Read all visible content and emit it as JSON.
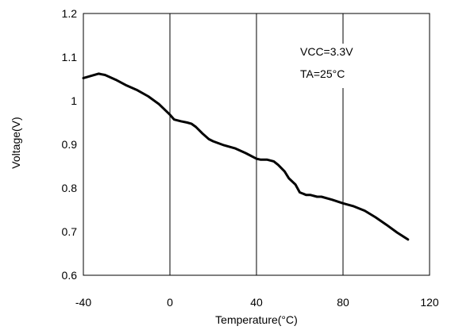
{
  "chart_data": {
    "type": "line",
    "xlabel": "Temperature(°C)",
    "ylabel": "Voltage(V)",
    "xlim": [
      -40,
      120
    ],
    "ylim": [
      0.6,
      1.2
    ],
    "x_ticks": [
      -40,
      0,
      40,
      80,
      120
    ],
    "y_ticks": [
      0.6,
      0.7,
      0.8,
      0.9,
      1.0,
      1.1,
      1.2
    ],
    "x_tick_labels": [
      "-40",
      "0",
      "40",
      "80",
      "120"
    ],
    "y_tick_labels": [
      "0.6",
      "0.7",
      "0.8",
      "0.9",
      "1",
      "1.1",
      "1.2"
    ],
    "grid": "vertical",
    "annotations": [
      "VCC=3.3V",
      "TA=25°C"
    ],
    "series": [
      {
        "x": [
          -40,
          -33,
          -30,
          -25,
          -20,
          -15,
          -10,
          -5,
          0,
          2,
          5,
          8,
          10,
          12,
          15,
          18,
          20,
          25,
          30,
          35,
          40,
          42,
          45,
          48,
          50,
          53,
          55,
          58,
          60,
          63,
          65,
          68,
          70,
          75,
          80,
          85,
          90,
          95,
          100,
          105,
          110
        ],
        "y": [
          1.052,
          1.062,
          1.059,
          1.048,
          1.035,
          1.024,
          1.01,
          0.992,
          0.968,
          0.957,
          0.953,
          0.95,
          0.947,
          0.94,
          0.925,
          0.912,
          0.907,
          0.898,
          0.891,
          0.88,
          0.867,
          0.865,
          0.865,
          0.861,
          0.853,
          0.838,
          0.822,
          0.808,
          0.79,
          0.784,
          0.784,
          0.78,
          0.78,
          0.773,
          0.765,
          0.758,
          0.748,
          0.733,
          0.716,
          0.698,
          0.682
        ],
        "color": "#000000"
      }
    ]
  }
}
